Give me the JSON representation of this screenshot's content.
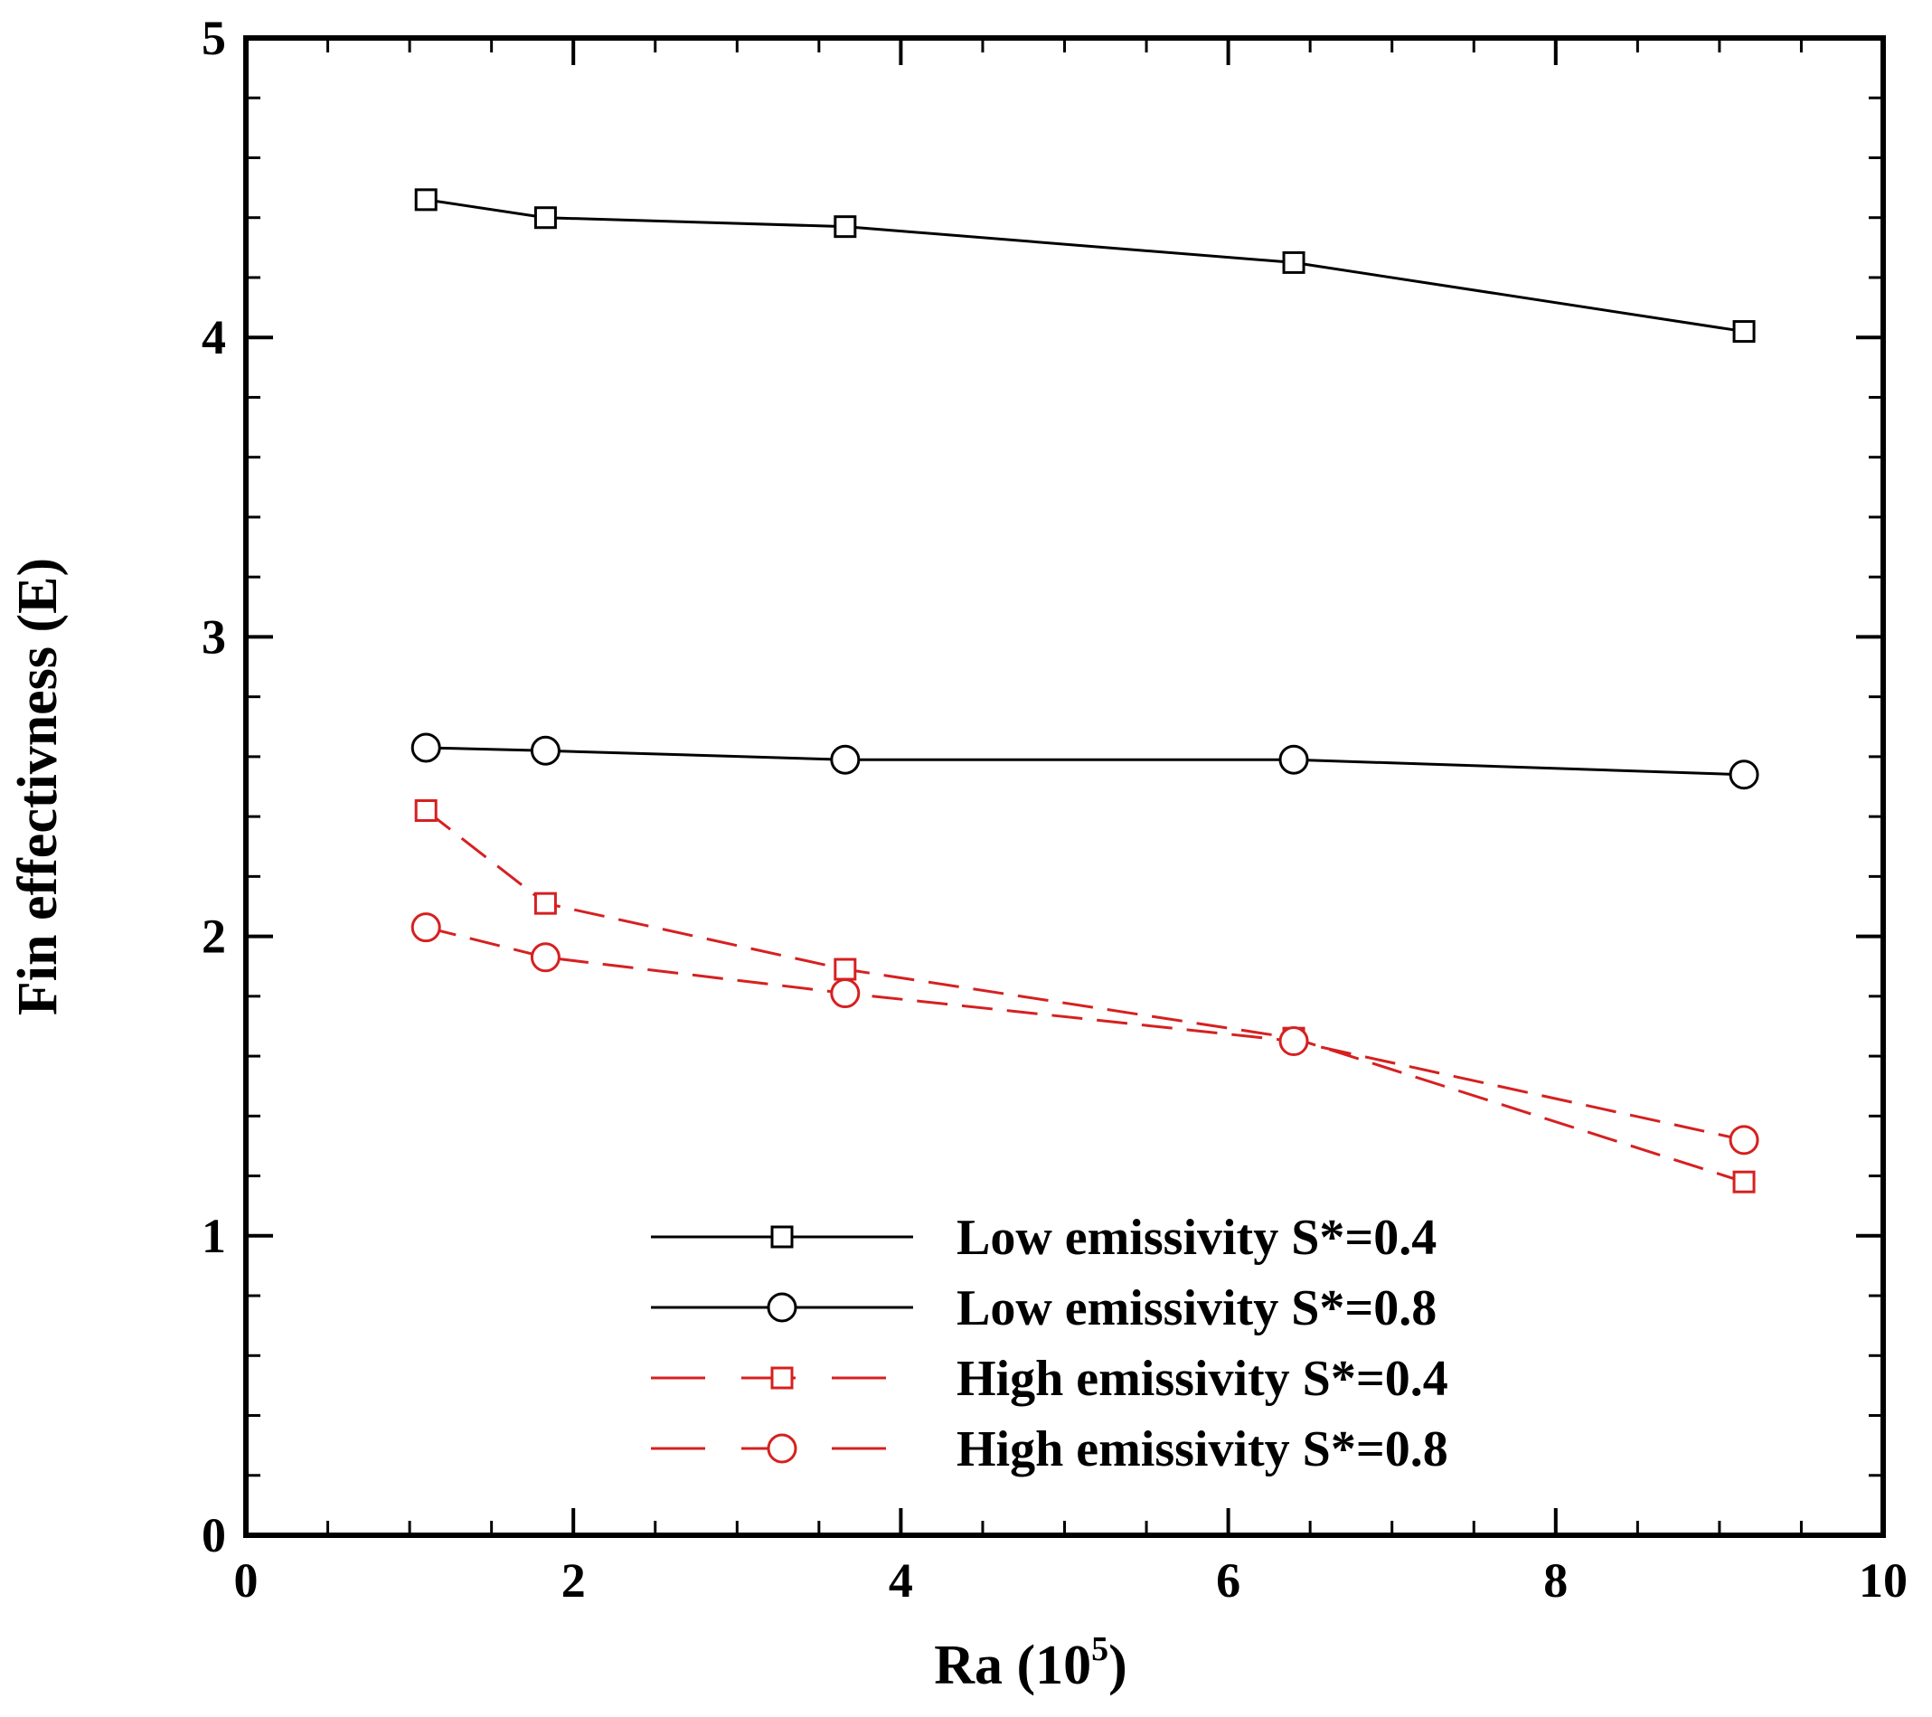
{
  "chart_data": {
    "type": "line",
    "title": "",
    "xlabel": "Ra (10",
    "xlabel_exponent": "5",
    "xlabel_close": ")",
    "ylabel": "Fin effectivness (E)",
    "xlim": [
      0,
      10
    ],
    "ylim": [
      0,
      5
    ],
    "x_ticks": [
      "0",
      "2",
      "4",
      "6",
      "8",
      "10"
    ],
    "y_ticks": [
      "0",
      "1",
      "2",
      "3",
      "4",
      "5"
    ],
    "grid": false,
    "legend_position": "bottom-right",
    "series": [
      {
        "name": "Low emissivity S*=0.4",
        "color": "#000000",
        "dash": "solid",
        "marker": "square",
        "x": [
          1.1,
          1.83,
          3.66,
          6.4,
          9.15
        ],
        "y": [
          4.46,
          4.4,
          4.37,
          4.25,
          4.02
        ]
      },
      {
        "name": "Low emissivity S*=0.8",
        "color": "#000000",
        "dash": "solid",
        "marker": "circle",
        "x": [
          1.1,
          1.83,
          3.66,
          6.4,
          9.15
        ],
        "y": [
          2.63,
          2.62,
          2.59,
          2.59,
          2.54
        ]
      },
      {
        "name": "High emissivity S*=0.4",
        "color": "#d62020",
        "dash": "dashed",
        "marker": "square",
        "x": [
          1.1,
          1.83,
          3.66,
          6.4,
          9.15
        ],
        "y": [
          2.42,
          2.11,
          1.89,
          1.66,
          1.18
        ]
      },
      {
        "name": "High emissivity S*=0.8",
        "color": "#d62020",
        "dash": "dashed",
        "marker": "circle",
        "x": [
          1.1,
          1.83,
          3.66,
          6.4,
          9.15
        ],
        "y": [
          2.03,
          1.93,
          1.81,
          1.65,
          1.32
        ]
      }
    ]
  }
}
